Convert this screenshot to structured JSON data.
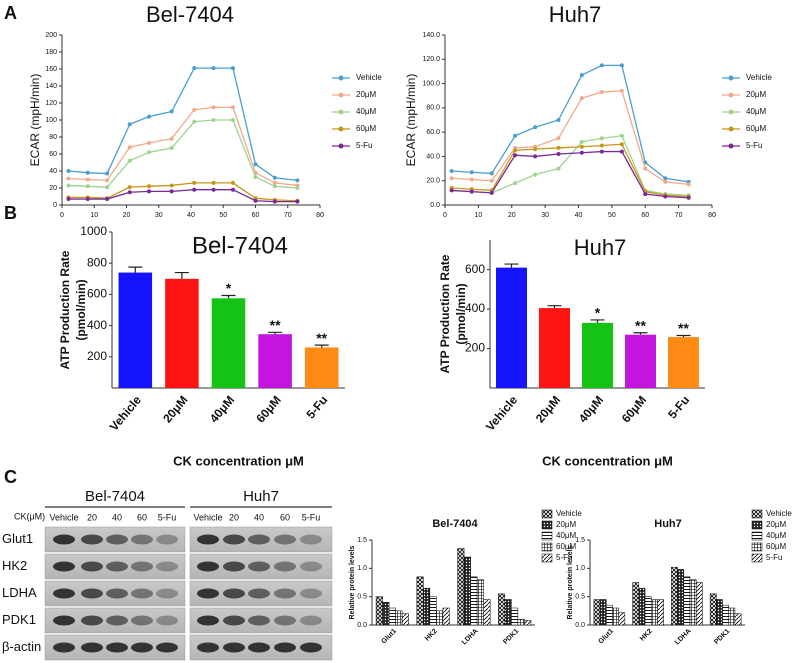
{
  "panels": [
    "A",
    "B",
    "C"
  ],
  "chart_data": [
    {
      "type": "line",
      "title": "Bel-7404",
      "ylabel": "ECAR (mpH/min)",
      "x": [
        2,
        8,
        14,
        21,
        27,
        34,
        41,
        47,
        53,
        60,
        66,
        73
      ],
      "xlim": [
        0,
        80
      ],
      "xticks": [
        0,
        10,
        20,
        30,
        40,
        50,
        60,
        70,
        80
      ],
      "ylim": [
        0,
        200
      ],
      "yticks": [
        0,
        20,
        40,
        60,
        80,
        100,
        120,
        140,
        160,
        180,
        200
      ],
      "series": [
        {
          "name": "Vehicle",
          "color": "#4a9fd0",
          "values": [
            40,
            38,
            37,
            95,
            104,
            110,
            161,
            161,
            161,
            48,
            32,
            29
          ]
        },
        {
          "name": "20μM",
          "color": "#f2a98a",
          "values": [
            31,
            30,
            29,
            68,
            73,
            78,
            112,
            115,
            115,
            38,
            26,
            23
          ]
        },
        {
          "name": "40μM",
          "color": "#9fd48f",
          "values": [
            23,
            22,
            21,
            52,
            62,
            67,
            98,
            100,
            100,
            33,
            22,
            20
          ]
        },
        {
          "name": "60μM",
          "color": "#c8951c",
          "values": [
            9,
            9,
            8,
            21,
            22,
            23,
            26,
            26,
            26,
            8,
            6,
            5
          ]
        },
        {
          "name": "5-Fu",
          "color": "#7a2a96",
          "values": [
            7,
            7,
            7,
            15,
            16,
            16,
            18,
            18,
            18,
            5,
            4,
            4
          ]
        }
      ]
    },
    {
      "type": "line",
      "title": "Huh7",
      "ylabel": "ECAR (mpH/min)",
      "x": [
        2,
        8,
        14,
        21,
        27,
        34,
        41,
        47,
        53,
        60,
        66,
        73
      ],
      "xlim": [
        0,
        80
      ],
      "xticks": [
        0,
        10,
        20,
        30,
        40,
        50,
        60,
        70,
        80
      ],
      "ylim": [
        0,
        140
      ],
      "yticks": [
        {
          "value": 0,
          "label": "0.0"
        },
        {
          "value": 20,
          "label": "20.0"
        },
        {
          "value": 40,
          "label": "40.0"
        },
        {
          "value": 60,
          "label": "60.0"
        },
        {
          "value": 80,
          "label": "80.0"
        },
        {
          "value": 100,
          "label": "100.0"
        },
        {
          "value": 120,
          "label": "120.0"
        },
        {
          "value": 140,
          "label": "140.0"
        }
      ],
      "series": [
        {
          "name": "Vehicle",
          "color": "#4a9fd0",
          "values": [
            28,
            27,
            26,
            57,
            64,
            70,
            107,
            115,
            115,
            35,
            22,
            19
          ]
        },
        {
          "name": "20μM",
          "color": "#f2a98a",
          "values": [
            22,
            21,
            20,
            47,
            48,
            55,
            88,
            93,
            94,
            30,
            19,
            17
          ]
        },
        {
          "name": "40μM",
          "color": "#9fd48f",
          "values": [
            12,
            11,
            10,
            18,
            25,
            30,
            52,
            55,
            57,
            12,
            9,
            8
          ]
        },
        {
          "name": "60μM",
          "color": "#c8951c",
          "values": [
            14,
            13,
            12,
            45,
            46,
            47,
            48,
            49,
            50,
            11,
            8,
            7
          ]
        },
        {
          "name": "5-Fu",
          "color": "#7a2a96",
          "values": [
            12,
            11,
            10,
            41,
            40,
            42,
            43,
            44,
            44,
            9,
            7,
            6
          ]
        }
      ]
    },
    {
      "type": "bar",
      "title": "Bel-7404",
      "ylabel": [
        "ATP Production Rate",
        "(pmol/min)"
      ],
      "xlabel": "CK concentration μM",
      "categories": [
        "Vehicle",
        "20μM",
        "40μM",
        "60μM",
        "5-Fu"
      ],
      "values": [
        740,
        700,
        575,
        345,
        260
      ],
      "errors": [
        35,
        40,
        18,
        12,
        15
      ],
      "annotations": [
        null,
        null,
        "*",
        "**",
        "**"
      ],
      "colors": [
        "#1414ff",
        "#ff1414",
        "#14c414",
        "#c414e0",
        "#ff8a14"
      ],
      "ylim": [
        0,
        1000
      ],
      "yticks": [
        200,
        400,
        600,
        800,
        1000
      ]
    },
    {
      "type": "bar",
      "title": "Huh7",
      "ylabel": [
        "ATP Production Rate",
        "(pmol/min)"
      ],
      "xlabel": "CK concentration μM",
      "categories": [
        "Vehicle",
        "20μM",
        "40μM",
        "60μM",
        "5-Fu"
      ],
      "values": [
        610,
        405,
        330,
        270,
        258
      ],
      "errors": [
        18,
        12,
        15,
        10,
        8
      ],
      "annotations": [
        null,
        null,
        "*",
        "**",
        "**"
      ],
      "colors": [
        "#1414ff",
        "#ff1414",
        "#14c414",
        "#c414e0",
        "#ff8a14"
      ],
      "ylim": [
        0,
        750
      ],
      "yticks": [
        200,
        400,
        600
      ]
    },
    {
      "type": "groupbar",
      "title": "Bel-7404",
      "ylabel": "Relative protein levels",
      "categories": [
        "Glut1",
        "HK2",
        "LDHA",
        "PDK1"
      ],
      "ylim": [
        0,
        1.5
      ],
      "yticks": [
        {
          "value": 0,
          "label": "0.0"
        },
        {
          "value": 0.5,
          "label": "0.5"
        },
        {
          "value": 1,
          "label": "1.0"
        },
        {
          "value": 1.5,
          "label": "1.5"
        }
      ],
      "series": [
        {
          "name": "Vehicle",
          "values": [
            0.5,
            0.85,
            1.35,
            0.55
          ]
        },
        {
          "name": "20μM",
          "values": [
            0.4,
            0.65,
            1.2,
            0.45
          ]
        },
        {
          "name": "40μM",
          "values": [
            0.3,
            0.5,
            0.85,
            0.3
          ]
        },
        {
          "name": "60μM",
          "values": [
            0.25,
            0.25,
            0.8,
            0.1
          ]
        },
        {
          "name": "5-Fu",
          "values": [
            0.2,
            0.3,
            0.45,
            0.08
          ]
        }
      ]
    },
    {
      "type": "groupbar",
      "title": "Huh7",
      "ylabel": "Relative protein levels",
      "categories": [
        "Glut1",
        "HK2",
        "LDHA",
        "PDK1"
      ],
      "ylim": [
        0,
        1.5
      ],
      "yticks": [
        {
          "value": 0,
          "label": "0.0"
        },
        {
          "value": 0.5,
          "label": "0.5"
        },
        {
          "value": 1,
          "label": "1.0"
        },
        {
          "value": 1.5,
          "label": "1.5"
        }
      ],
      "series": [
        {
          "name": "Vehicle",
          "values": [
            0.45,
            0.75,
            1.02,
            0.55
          ]
        },
        {
          "name": "20μM",
          "values": [
            0.45,
            0.65,
            0.98,
            0.45
          ]
        },
        {
          "name": "40μM",
          "values": [
            0.35,
            0.5,
            0.85,
            0.35
          ]
        },
        {
          "name": "60μM",
          "values": [
            0.3,
            0.45,
            0.8,
            0.3
          ]
        },
        {
          "name": "5-Fu",
          "values": [
            0.22,
            0.45,
            0.75,
            0.2
          ]
        }
      ]
    }
  ],
  "blot": {
    "groups": [
      "Bel-7404",
      "Huh7"
    ],
    "unit_label": "CK(μM)",
    "lanes": [
      "Vehicle",
      "20",
      "40",
      "60",
      "5-Fu"
    ],
    "rows": [
      "Glut1",
      "HK2",
      "LDHA",
      "PDK1",
      "β-actin"
    ]
  }
}
